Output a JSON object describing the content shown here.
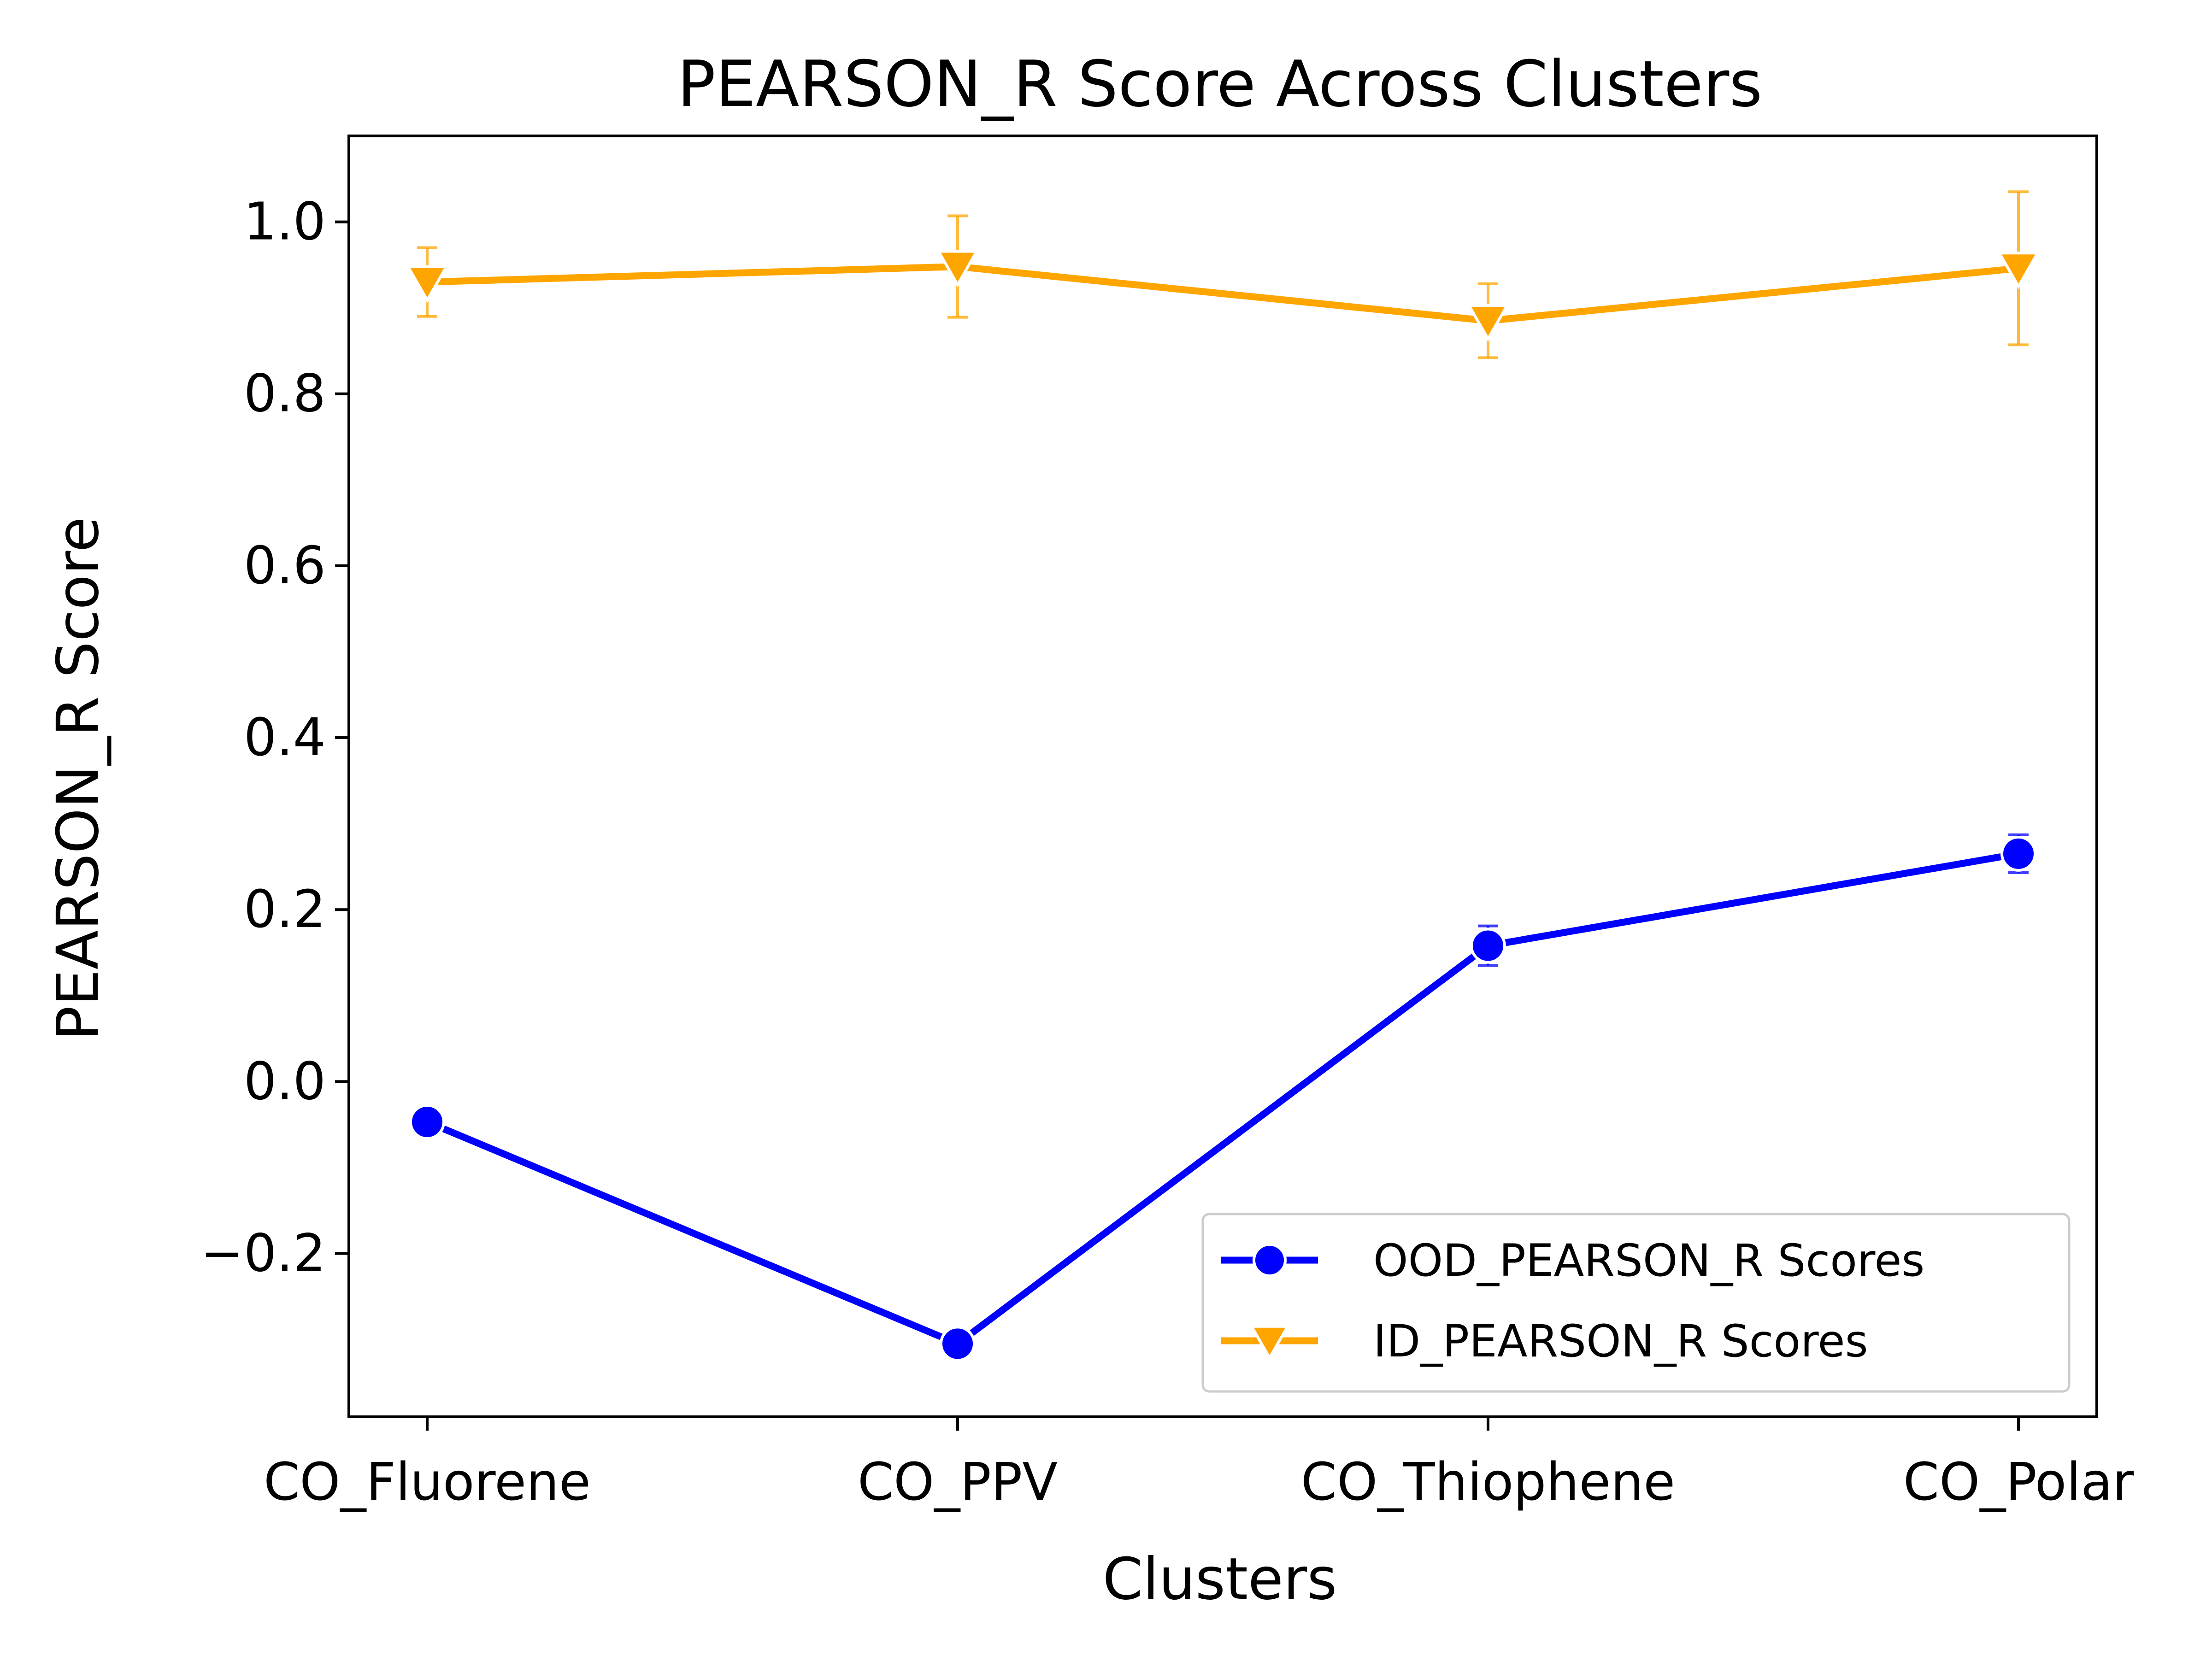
{
  "chart_data": {
    "type": "line",
    "title": "PEARSON_R Score Across Clusters",
    "xlabel": "Clusters",
    "ylabel": "PEARSON_R Score",
    "categories": [
      "CO_Fluorene",
      "CO_PPV",
      "CO_Thiophene",
      "CO_Polar"
    ],
    "ylim": [
      -0.39,
      1.1
    ],
    "yticks": [
      -0.2,
      0.0,
      0.2,
      0.4,
      0.6,
      0.8,
      1.0
    ],
    "ytick_labels": [
      "−0.2",
      "0.0",
      "0.2",
      "0.4",
      "0.6",
      "0.8",
      "1.0"
    ],
    "grid": false,
    "legend_position": "lower-right",
    "series": [
      {
        "name": "OOD_PEARSON_R Scores",
        "color": "#0000ff",
        "marker": "circle",
        "values": [
          -0.047,
          -0.305,
          0.158,
          0.265
        ],
        "errors": [
          0.005,
          0.008,
          0.023,
          0.022
        ]
      },
      {
        "name": "ID_PEARSON_R Scores",
        "color": "#ffa500",
        "marker": "triangle-down",
        "values": [
          0.93,
          0.948,
          0.885,
          0.946
        ],
        "errors": [
          0.04,
          0.059,
          0.043,
          0.089
        ]
      }
    ]
  }
}
